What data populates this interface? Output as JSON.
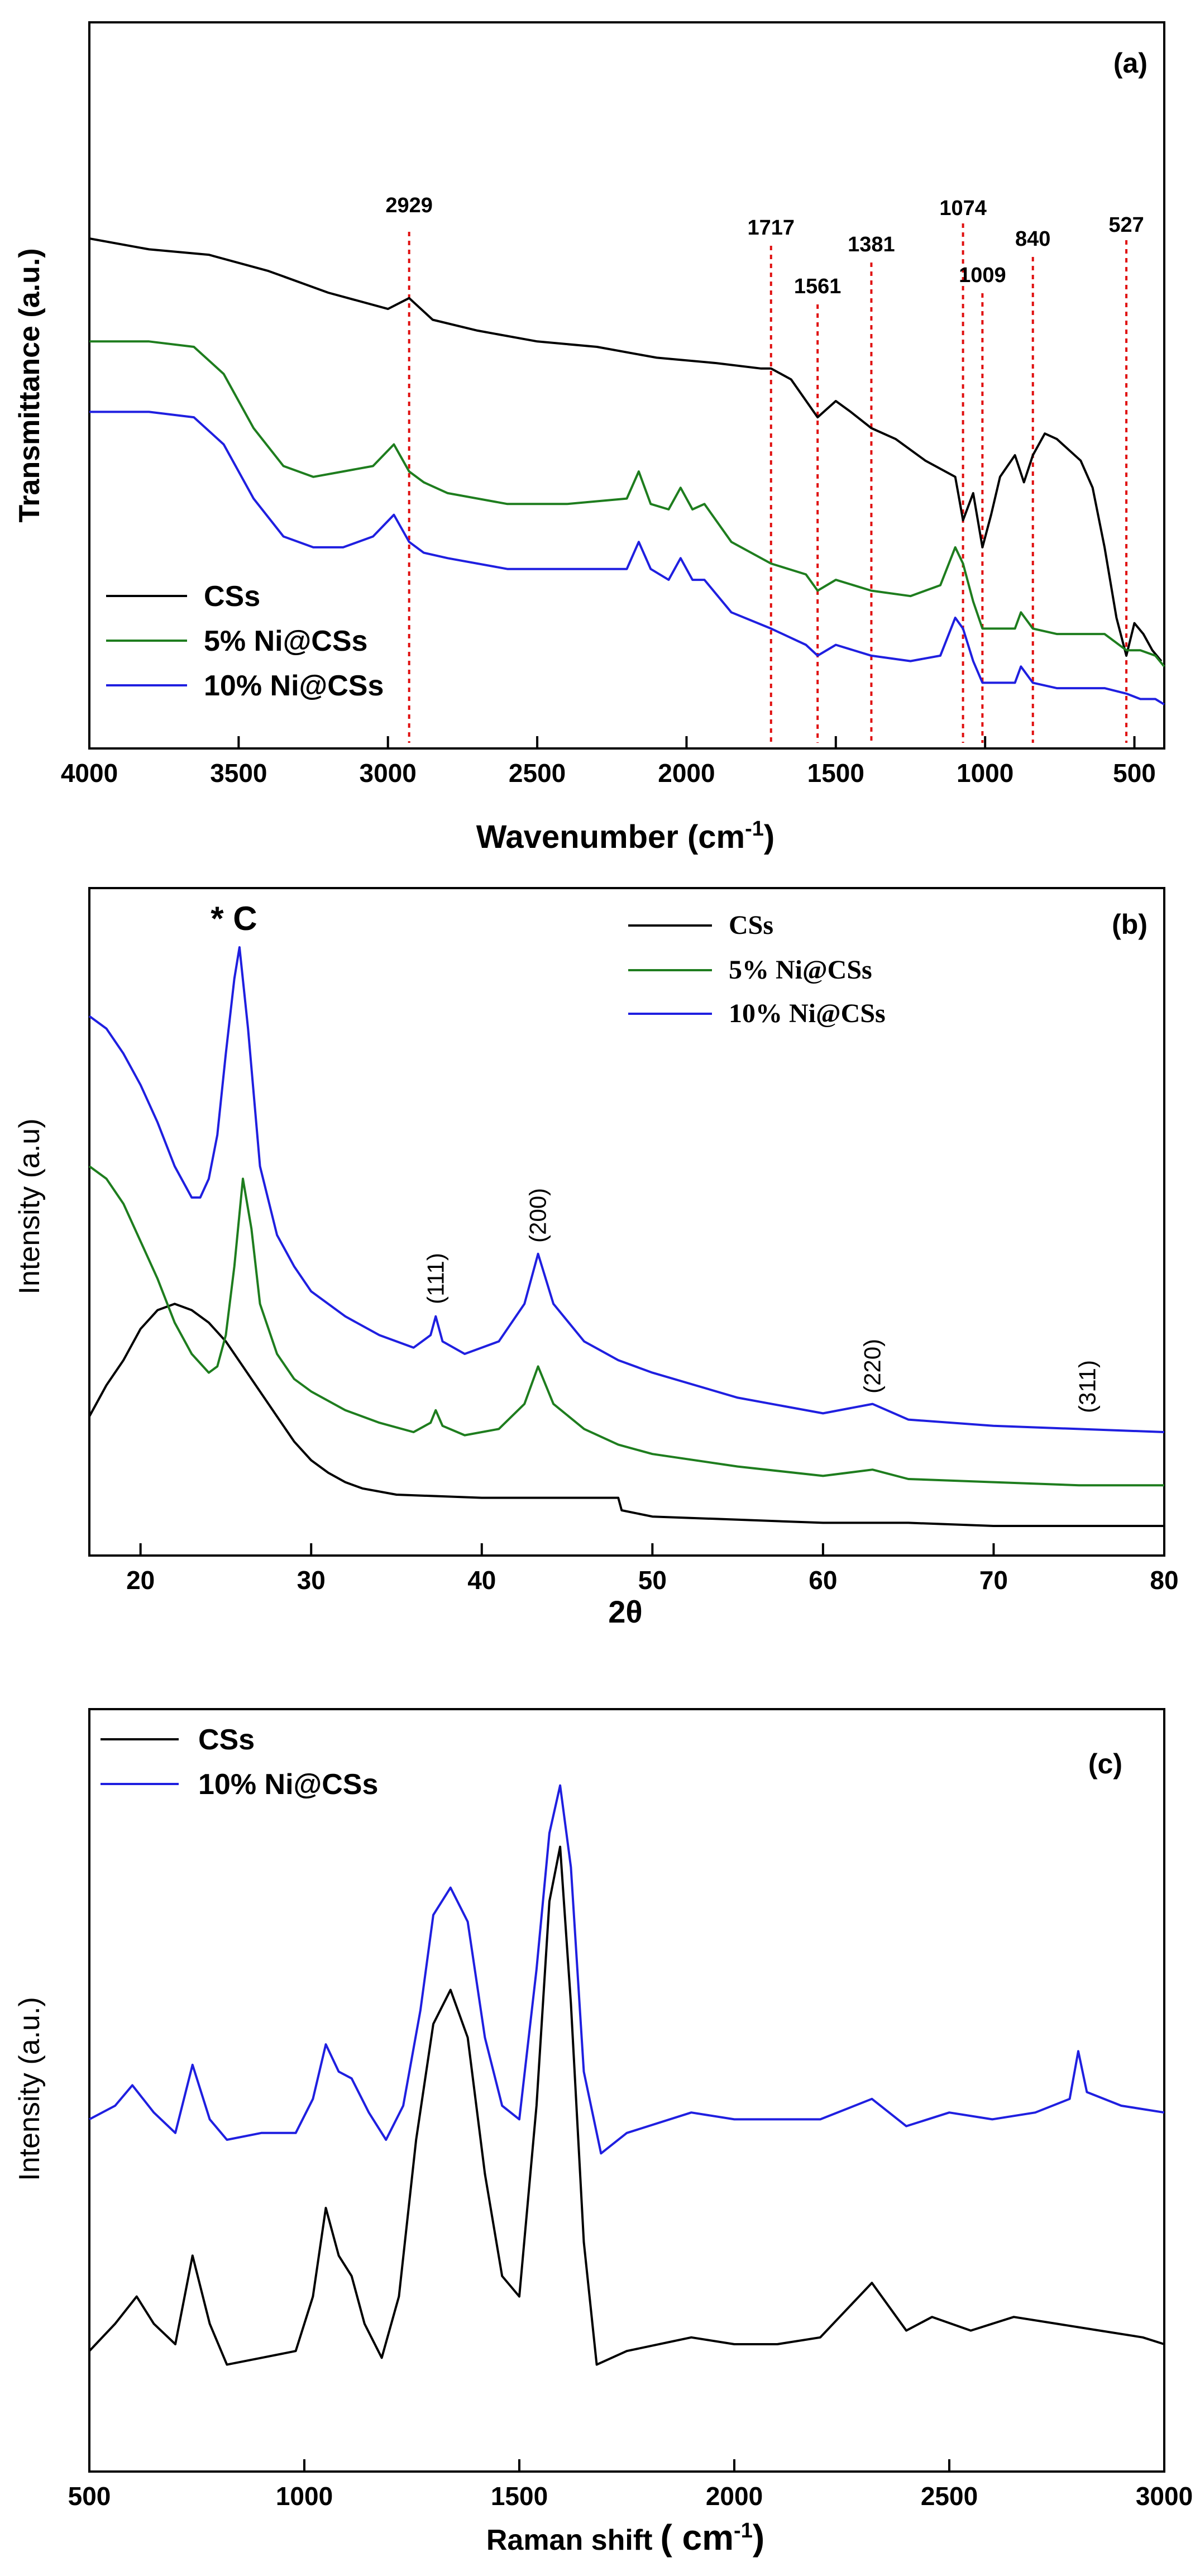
{
  "figure": "three-panel spectroscopy figure",
  "chart_data": [
    {
      "panel": "(a)",
      "type": "line",
      "title": "",
      "xlabel": "Wavenumber (cm",
      "xlabel_sup": "-1",
      "xlabel_close": ")",
      "ylabel": "Transmittance (a.u.)",
      "xlim": [
        4000,
        400
      ],
      "ylim": [
        0,
        100
      ],
      "x_ticks": [
        4000,
        3500,
        3000,
        2500,
        2000,
        1500,
        1000,
        500
      ],
      "x_tick_labels": [
        "4000",
        "3500",
        "3000",
        "2500",
        "2000",
        "1500",
        "1000",
        "500"
      ],
      "y_ticks_visible": false,
      "reference_lines": [
        {
          "x": 2929,
          "label": "2929"
        },
        {
          "x": 1717,
          "label": "1717"
        },
        {
          "x": 1561,
          "label": "1561"
        },
        {
          "x": 1381,
          "label": "1381"
        },
        {
          "x": 1074,
          "label": "1074"
        },
        {
          "x": 1009,
          "label": "1009"
        },
        {
          "x": 840,
          "label": "840"
        },
        {
          "x": 527,
          "label": "527"
        }
      ],
      "series": [
        {
          "name": "CSs",
          "color": "#000000",
          "x": [
            4000,
            3800,
            3600,
            3400,
            3200,
            3000,
            2929,
            2850,
            2700,
            2500,
            2300,
            2100,
            1900,
            1750,
            1717,
            1650,
            1561,
            1500,
            1450,
            1381,
            1300,
            1200,
            1100,
            1074,
            1040,
            1009,
            980,
            950,
            900,
            870,
            840,
            800,
            760,
            720,
            680,
            640,
            600,
            560,
            527,
            500,
            470,
            440,
            410
          ],
          "y": [
            90,
            88,
            87,
            84,
            80,
            77,
            79,
            75,
            73,
            71,
            70,
            68,
            67,
            66,
            66,
            64,
            57,
            60,
            58,
            55,
            53,
            49,
            46,
            38,
            43,
            33,
            39,
            46,
            50,
            45,
            50,
            54,
            53,
            51,
            49,
            44,
            33,
            20,
            13,
            19,
            17,
            14,
            12
          ]
        },
        {
          "name": "5% Ni@CSs",
          "color": "#1e7d1e",
          "x": [
            4000,
            3800,
            3650,
            3550,
            3450,
            3350,
            3250,
            3150,
            3050,
            2980,
            2929,
            2880,
            2800,
            2600,
            2400,
            2200,
            2160,
            2120,
            2060,
            2020,
            1980,
            1940,
            1850,
            1717,
            1600,
            1561,
            1500,
            1381,
            1250,
            1150,
            1100,
            1074,
            1040,
            1009,
            960,
            900,
            880,
            840,
            760,
            700,
            600,
            527,
            480,
            430,
            400
          ],
          "y": [
            71,
            71,
            70,
            65,
            55,
            48,
            46,
            47,
            48,
            52,
            47,
            45,
            43,
            41,
            41,
            42,
            47,
            41,
            40,
            44,
            40,
            41,
            34,
            30,
            28,
            25,
            27,
            25,
            24,
            26,
            33,
            30,
            23,
            18,
            18,
            18,
            21,
            18,
            17,
            17,
            17,
            14,
            14,
            13,
            11
          ]
        },
        {
          "name": "10% Ni@CSs",
          "color": "#1f1fe0",
          "x": [
            4000,
            3800,
            3650,
            3550,
            3450,
            3350,
            3250,
            3150,
            3050,
            2980,
            2929,
            2880,
            2800,
            2600,
            2400,
            2200,
            2160,
            2120,
            2060,
            2020,
            1980,
            1940,
            1850,
            1717,
            1600,
            1561,
            1500,
            1381,
            1250,
            1150,
            1100,
            1074,
            1040,
            1009,
            960,
            900,
            880,
            840,
            760,
            700,
            600,
            527,
            480,
            430,
            400
          ],
          "y": [
            58,
            58,
            57,
            52,
            42,
            35,
            33,
            33,
            35,
            39,
            34,
            32,
            31,
            29,
            29,
            29,
            34,
            29,
            27,
            31,
            27,
            27,
            21,
            18,
            15,
            13,
            15,
            13,
            12,
            13,
            20,
            18,
            12,
            8,
            8,
            8,
            11,
            8,
            7,
            7,
            7,
            6,
            5,
            5,
            4
          ]
        }
      ]
    },
    {
      "panel": "(b)",
      "type": "line",
      "title": "",
      "xlabel": "2θ",
      "ylabel": "Intensity (a.u)",
      "xlim": [
        17,
        80
      ],
      "ylim": [
        0,
        100
      ],
      "x_ticks": [
        20,
        30,
        40,
        50,
        60,
        70,
        80
      ],
      "x_tick_labels": [
        "20",
        "30",
        "40",
        "50",
        "60",
        "70",
        "80"
      ],
      "y_ticks_visible": false,
      "annotations": [
        {
          "text": "* C",
          "x": 25.8
        },
        {
          "text": "(111)",
          "x": 37.3
        },
        {
          "text": "(200)",
          "x": 43.3
        },
        {
          "text": "(220)",
          "x": 62.9
        },
        {
          "text": "(311)",
          "x": 75.5
        }
      ],
      "series": [
        {
          "name": "CSs",
          "color": "#000000",
          "x": [
            17,
            18,
            19,
            20,
            21,
            22,
            23,
            24,
            25,
            26,
            27,
            28,
            29,
            30,
            31,
            32,
            33,
            35,
            40,
            45,
            48,
            48.2,
            50,
            55,
            60,
            65,
            70,
            75,
            80
          ],
          "y": [
            20,
            25,
            29,
            34,
            37,
            38,
            37,
            35,
            32,
            28,
            24,
            20,
            16,
            13,
            11,
            9.5,
            8.5,
            7.5,
            7,
            7,
            7,
            5,
            4,
            3.5,
            3,
            3,
            2.5,
            2.5,
            2.5
          ]
        },
        {
          "name": "5% Ni@CSs",
          "color": "#1e7d1e",
          "x": [
            17,
            18,
            19,
            20,
            21,
            22,
            23,
            24,
            24.5,
            25,
            25.5,
            26,
            26.5,
            27,
            28,
            29,
            30,
            32,
            34,
            36,
            37,
            37.3,
            37.7,
            39,
            41,
            42.5,
            43.3,
            44.2,
            46,
            48,
            50,
            55,
            60,
            62.9,
            65,
            70,
            75,
            80
          ],
          "y": [
            60,
            58,
            54,
            48,
            42,
            35,
            30,
            27,
            28,
            33,
            44,
            58,
            50,
            38,
            30,
            26,
            24,
            21,
            19,
            17.5,
            19,
            21,
            18.5,
            17,
            18,
            22,
            28,
            22,
            18,
            15.5,
            14,
            12,
            10.5,
            11.5,
            10,
            9.5,
            9,
            9
          ]
        },
        {
          "name": "10% Ni@CSs",
          "color": "#1f1fe0",
          "x": [
            17,
            18,
            19,
            20,
            21,
            22,
            23,
            23.5,
            24,
            24.5,
            25,
            25.5,
            25.8,
            26.3,
            27,
            28,
            29,
            30,
            32,
            34,
            36,
            37,
            37.3,
            37.7,
            39,
            41,
            42.5,
            43.3,
            44.2,
            46,
            48,
            50,
            55,
            60,
            62.9,
            65,
            70,
            75,
            80
          ],
          "y": [
            84,
            82,
            78,
            73,
            67,
            60,
            55,
            55,
            58,
            65,
            78,
            90,
            95,
            82,
            60,
            49,
            44,
            40,
            36,
            33,
            31,
            33,
            36,
            32,
            30,
            32,
            38,
            46,
            38,
            32,
            29,
            27,
            23,
            20.5,
            22,
            19.5,
            18.5,
            18,
            17.5
          ]
        }
      ]
    },
    {
      "panel": "(c)",
      "type": "line",
      "title": "",
      "xlabel": "Raman shift",
      "xlabel_unit": "( cm",
      "xlabel_sup": "-1",
      "xlabel_close": ")",
      "ylabel": "Intensity (a.u.)",
      "xlim": [
        500,
        3000
      ],
      "ylim": [
        0,
        100
      ],
      "x_ticks": [
        500,
        1000,
        1500,
        2000,
        2500,
        3000
      ],
      "x_tick_labels": [
        "500",
        "1000",
        "1500",
        "2000",
        "2500",
        "3000"
      ],
      "y_ticks_visible": false,
      "series": [
        {
          "name": "CSs",
          "color": "#000000",
          "x": [
            500,
            560,
            610,
            650,
            700,
            740,
            780,
            820,
            900,
            980,
            1020,
            1050,
            1080,
            1110,
            1140,
            1180,
            1220,
            1260,
            1300,
            1340,
            1380,
            1420,
            1460,
            1500,
            1540,
            1570,
            1595,
            1620,
            1650,
            1680,
            1750,
            1900,
            2000,
            2100,
            2200,
            2320,
            2400,
            2460,
            2550,
            2650,
            2750,
            2850,
            2950,
            3000
          ],
          "y": [
            14,
            18,
            22,
            18,
            15,
            28,
            18,
            12,
            13,
            14,
            22,
            35,
            28,
            25,
            18,
            13,
            22,
            45,
            62,
            67,
            60,
            40,
            25,
            22,
            50,
            80,
            88,
            65,
            30,
            12,
            14,
            16,
            15,
            15,
            16,
            24,
            17,
            19,
            17,
            19,
            18,
            17,
            16,
            15
          ]
        },
        {
          "name": "10% Ni@CSs",
          "color": "#1f1fe0",
          "x": [
            500,
            560,
            600,
            650,
            700,
            740,
            780,
            820,
            900,
            980,
            1020,
            1050,
            1080,
            1110,
            1150,
            1190,
            1230,
            1270,
            1300,
            1340,
            1380,
            1420,
            1460,
            1500,
            1540,
            1570,
            1595,
            1620,
            1650,
            1690,
            1750,
            1900,
            2000,
            2100,
            2200,
            2320,
            2400,
            2500,
            2600,
            2700,
            2780,
            2800,
            2820,
            2900,
            3000
          ],
          "y": [
            48,
            50,
            53,
            49,
            46,
            56,
            48,
            45,
            46,
            46,
            51,
            59,
            55,
            54,
            49,
            45,
            50,
            64,
            78,
            82,
            77,
            60,
            50,
            48,
            70,
            90,
            97,
            85,
            55,
            43,
            46,
            49,
            48,
            48,
            48,
            51,
            47,
            49,
            48,
            49,
            51,
            58,
            52,
            50,
            49
          ]
        }
      ]
    }
  ]
}
